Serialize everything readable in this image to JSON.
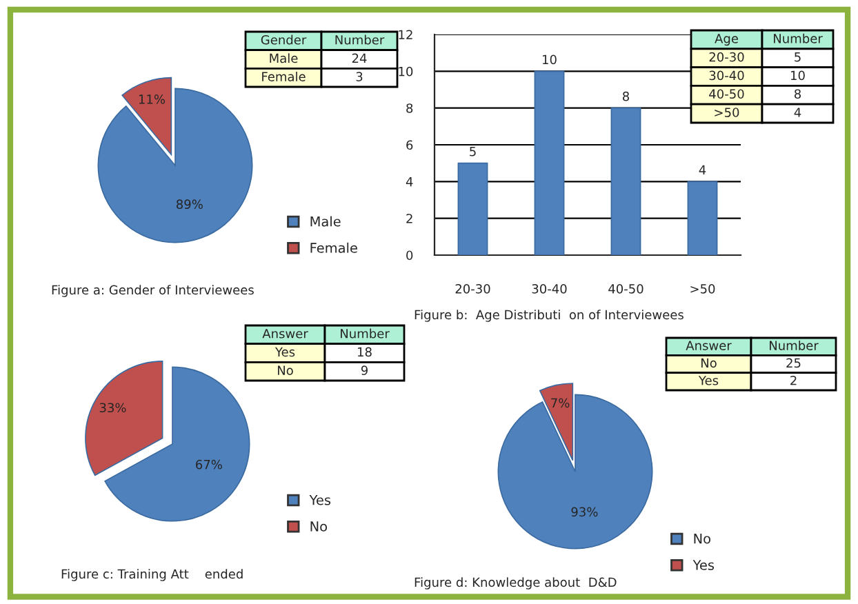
{
  "chart_data": [
    {
      "type": "pie",
      "categories": [
        "Male",
        "Female"
      ],
      "values": [
        89,
        11
      ],
      "colors": [
        "#4f81bd",
        "#c0504d"
      ],
      "value_labels": [
        "89%",
        "11%"
      ],
      "legend": "right",
      "annotations": [
        "Figure a: Gender of Interviewees",
        "Gender",
        "Number",
        "Male",
        "24",
        "Female",
        "3"
      ]
    },
    {
      "type": "bar",
      "categories": [
        "20-30",
        "30-40",
        "40-50",
        ">50"
      ],
      "values": [
        5,
        10,
        8,
        4
      ],
      "colors": [
        "#4f81bd",
        "#4f81bd",
        "#4f81bd",
        "#4f81bd"
      ],
      "data_labels": true,
      "ylim": [
        0,
        12
      ],
      "yticks": [
        0,
        2,
        4,
        6,
        8,
        10,
        12
      ],
      "grid": "y",
      "annotations": [
        "Figure b:  Age Distributi  on of Interviewees",
        "Age",
        "Number",
        "20-30",
        "5",
        "30-40",
        "10",
        "40-50",
        "8",
        ">50",
        "4"
      ]
    },
    {
      "type": "pie",
      "categories": [
        "Yes",
        "No"
      ],
      "values": [
        67,
        33
      ],
      "colors": [
        "#4f81bd",
        "#c0504d"
      ],
      "value_labels": [
        "67%",
        "33%"
      ],
      "legend": "right",
      "annotations": [
        "Figure c: Training Att    ended",
        "Answer",
        "Number",
        "Yes",
        "18",
        "No",
        "9"
      ]
    },
    {
      "type": "pie",
      "categories": [
        "No",
        "Yes"
      ],
      "values": [
        93,
        7
      ],
      "colors": [
        "#4f81bd",
        "#c0504d"
      ],
      "value_labels": [
        "93%",
        "7%"
      ],
      "legend": "right",
      "annotations": [
        "Figure d: Knowledge about  D&D",
        "Answer",
        "Number",
        "No",
        "25",
        "Yes",
        "2"
      ]
    }
  ]
}
